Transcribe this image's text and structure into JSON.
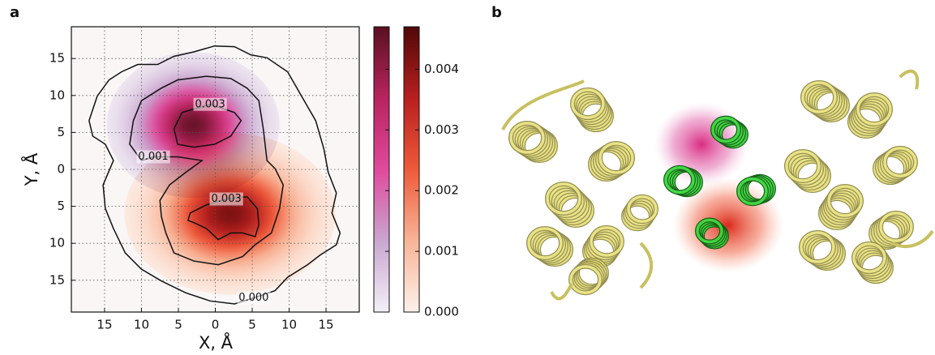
{
  "panel_labels": [
    "a",
    "b"
  ],
  "chart_data": {
    "type": "density",
    "x_label": "X, Å",
    "y_label": "Y, Å",
    "xlim": [
      -19.5,
      19.5
    ],
    "ylim": [
      -19.3,
      19.3
    ],
    "xticks": [
      {
        "value": -15,
        "label": "15"
      },
      {
        "value": -10,
        "label": "10"
      },
      {
        "value": -5,
        "label": "5"
      },
      0,
      5,
      10,
      15
    ],
    "yticks": [
      {
        "value": -15,
        "label": "15"
      },
      {
        "value": -10,
        "label": "10"
      },
      {
        "value": -5,
        "label": "5"
      },
      0,
      5,
      10,
      15
    ],
    "grid": true,
    "clim": [
      0,
      0.0047
    ],
    "cticks": [
      {
        "value": 0,
        "label": "0.000"
      },
      0.001,
      0.002,
      0.003,
      0.004
    ],
    "densities": [
      {
        "colors": [
          "#f3f0f6",
          "#c9a6cf",
          "#e04a9c",
          "#b8245e",
          "#5a1020"
        ],
        "x": -3,
        "y": 6,
        "sx": 4.5,
        "sy": 3.8,
        "peak": 0.0045
      },
      {
        "colors": [
          "#fdf1ea",
          "#f8b497",
          "#ee5a3a",
          "#b81f1f",
          "#500808"
        ],
        "x": 2,
        "y": -6,
        "sx": 5.5,
        "sy": 4.2,
        "peak": 0.0042
      }
    ],
    "contours": [
      {
        "level": {
          "value": 0,
          "label": "0.000"
        },
        "x": [
          5.2,
          8.1,
          9.8,
          12.5,
          14.2,
          16.4,
          16.9,
          15.8,
          16.4,
          15.3,
          14.7,
          13.6,
          11.4,
          9.8,
          7.0,
          4.8,
          2.6,
          -0.1,
          -2.9,
          -5.6,
          -7.8,
          -10.5,
          -12.7,
          -14.4,
          -16.0,
          -17.1,
          -16.6,
          -14.9,
          -13.8,
          -15.2,
          -14.9,
          -13.8,
          -12.2,
          -10.0,
          -7.3,
          -4.0,
          -0.7,
          2.6
        ],
        "y": [
          -17.4,
          -16.4,
          -14.6,
          -12.9,
          -11.6,
          -10.2,
          -8.6,
          -5.9,
          -3.2,
          -0.4,
          2.8,
          6.6,
          10.4,
          13.2,
          15.1,
          15.5,
          16.6,
          16.7,
          15.9,
          15.3,
          14.2,
          14.2,
          13.2,
          12.1,
          9.9,
          6.6,
          4.5,
          3.4,
          1.2,
          -2.1,
          -5.3,
          -8.0,
          -11.3,
          -13.5,
          -15.1,
          -16.7,
          -17.8,
          -18.2
        ]
      },
      {
        "level": 0.001,
        "x": [
          -8.4,
          -10.0,
          -11.6,
          -11.1,
          -10.0,
          -7.3,
          -5.1,
          -1.2,
          2.1,
          4.3,
          5.9,
          6.5,
          7.0,
          8.1,
          9.2,
          8.7,
          7.6,
          5.4,
          3.7,
          0.4,
          -2.9,
          -5.6,
          -6.7,
          -7.3,
          -7.5,
          -6.2,
          -4.0,
          -1.8,
          -5.1
        ],
        "y": [
          1.7,
          1.2,
          3.4,
          6.6,
          9.3,
          11.0,
          12.1,
          12.6,
          12.3,
          11.0,
          9.3,
          5.5,
          1.2,
          0.1,
          -2.1,
          -5.3,
          -8.6,
          -10.2,
          -11.8,
          -12.9,
          -12.4,
          -11.3,
          -8.6,
          -6.4,
          -4.2,
          -2.1,
          -0.4,
          1.2,
          1.7
        ]
      },
      {
        "level": 0.003,
        "x": [
          -0.7,
          2.6,
          3.5,
          2.1,
          -0.1,
          -2.9,
          -5.1,
          -5.6,
          -4.5
        ],
        "y": [
          8.8,
          7.7,
          6.6,
          4.5,
          3.4,
          3.0,
          3.4,
          5.5,
          7.7
        ]
      },
      {
        "level": 0.003,
        "x": [
          1.5,
          4.3,
          5.7,
          5.9,
          5.4,
          3.7,
          2.1,
          0.4,
          -1.2,
          -2.9,
          -3.7,
          -3.4,
          -1.2
        ],
        "y": [
          -4.0,
          -3.7,
          -5.3,
          -7.5,
          -9.1,
          -8.6,
          -8.6,
          -9.5,
          -8.0,
          -7.2,
          -6.9,
          -5.9,
          -4.8
        ]
      }
    ]
  }
}
